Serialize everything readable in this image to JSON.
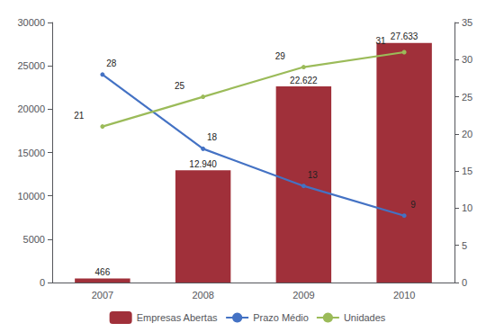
{
  "chart_data": {
    "type": "bar",
    "categories": [
      "2007",
      "2008",
      "2009",
      "2010"
    ],
    "series": [
      {
        "name": "Empresas Abertas",
        "type": "bar",
        "color": "#A0303A",
        "values": [
          466,
          12940,
          22622,
          27633
        ],
        "value_labels": [
          "466",
          "12.940",
          "22.622",
          "27.633"
        ]
      },
      {
        "name": "Prazo Médio",
        "type": "line",
        "color": "#4472C4",
        "axis": "y2",
        "values": [
          28,
          18,
          13,
          9
        ]
      },
      {
        "name": "Unidades",
        "type": "line",
        "color": "#9BBB59",
        "axis": "y2",
        "values": [
          21,
          25,
          29,
          31
        ]
      }
    ],
    "ylim": [
      0,
      30000
    ],
    "yticks": [
      0,
      5000,
      10000,
      15000,
      20000,
      25000,
      30000
    ],
    "y2lim": [
      0,
      35
    ],
    "y2ticks": [
      0,
      5,
      10,
      15,
      20,
      25,
      30,
      35
    ],
    "data_labels": true,
    "legend": "bottom",
    "grid": false
  }
}
